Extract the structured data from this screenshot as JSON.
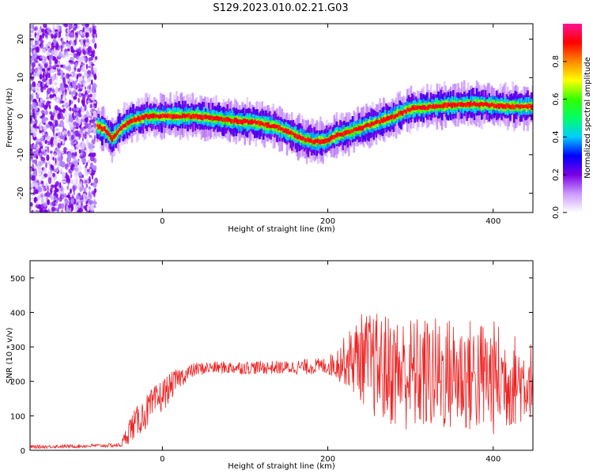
{
  "title": "S129.2023.010.02.21.G03",
  "chart_data": [
    {
      "type": "heatmap",
      "xlabel": "Height of straight line (km)",
      "ylabel": "Frequency (Hz)",
      "xlim": [
        -160,
        448
      ],
      "ylim": [
        -25,
        24
      ],
      "xticks": [
        0,
        200,
        400
      ],
      "yticks": [
        -20,
        -10,
        0,
        10,
        20
      ],
      "noise_region_x": [
        -160,
        -80
      ],
      "ridge": {
        "x": [
          -80,
          -70,
          -62,
          -55,
          -45,
          -35,
          -20,
          0,
          20,
          40,
          60,
          80,
          100,
          110,
          120,
          140,
          160,
          170,
          180,
          195,
          210,
          225,
          240,
          260,
          280,
          300,
          320,
          340,
          360,
          380,
          400,
          420,
          448
        ],
        "y": [
          -2.5,
          -3.5,
          -6,
          -4,
          -2,
          -1,
          0,
          0,
          0,
          0,
          -0.5,
          -1,
          -1.5,
          -1.5,
          -2,
          -3,
          -5,
          -6,
          -6.5,
          -6.5,
          -5,
          -4,
          -3,
          -1.5,
          0,
          2,
          2.3,
          2.8,
          3,
          3.1,
          2.8,
          2.5,
          2.5
        ]
      },
      "colorbar": {
        "label": "Normalized spectral amplitude",
        "ticks": [
          0.0,
          0.2,
          0.4,
          0.6,
          0.8
        ],
        "range": [
          0,
          1
        ],
        "colormap": [
          "#ffffff",
          "#cc99ff",
          "#7a00e6",
          "#0000ff",
          "#00ccff",
          "#00ff66",
          "#33ff00",
          "#ffff00",
          "#ff8800",
          "#ff0000",
          "#ff1493"
        ]
      }
    },
    {
      "type": "line",
      "xlabel": "Height of straight line (km)",
      "ylabel": "SNR (10 * v/v)",
      "xlim": [
        -160,
        448
      ],
      "ylim": [
        0,
        550
      ],
      "xticks": [
        0,
        200,
        400
      ],
      "yticks": [
        0,
        100,
        200,
        300,
        400,
        500
      ],
      "color": "#ee2222",
      "envelope": {
        "x": [
          -160,
          -100,
          -50,
          -40,
          -20,
          0,
          20,
          40,
          60,
          100,
          150,
          200,
          220,
          240,
          260,
          300,
          350,
          400,
          440,
          448
        ],
        "mean": [
          10,
          12,
          15,
          60,
          110,
          160,
          210,
          235,
          240,
          240,
          240,
          245,
          260,
          270,
          240,
          220,
          220,
          210,
          200,
          210
        ],
        "spread": [
          5,
          5,
          6,
          40,
          50,
          50,
          30,
          20,
          18,
          20,
          20,
          25,
          70,
          130,
          160,
          170,
          170,
          170,
          120,
          110
        ]
      }
    }
  ]
}
